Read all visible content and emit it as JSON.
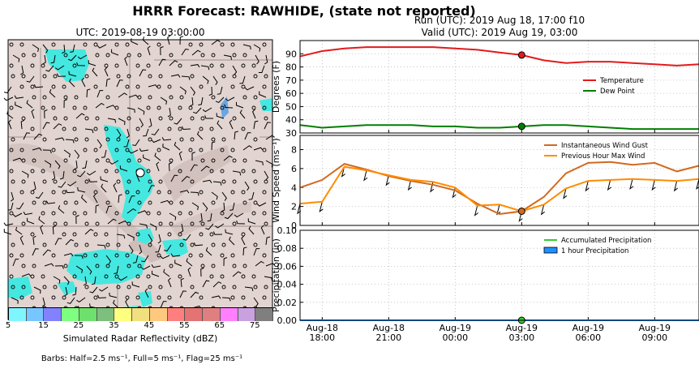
{
  "header": {
    "title": "HRRR Forecast: RAWHIDE, (state not reported)",
    "map_title": "UTC: 2019-08-19 03:00:00",
    "run_text": "Run (UTC): 2019 Aug 18, 17:00 f10",
    "valid_text": "Valid (UTC): 2019 Aug 19, 03:00"
  },
  "colorbar": {
    "label": "Simulated Radar Reflectivity (dBZ)",
    "ticks": [
      "5",
      "15",
      "25",
      "35",
      "45",
      "55",
      "65",
      "75"
    ],
    "colors": [
      "#7ff6ff",
      "#78c6ff",
      "#8282ff",
      "#7fff7f",
      "#6ee06e",
      "#7dbf7d",
      "#ffff7f",
      "#f2e07f",
      "#ffc87f",
      "#ff7f7f",
      "#e47373",
      "#e07f7f",
      "#ff7fff",
      "#c9a1e0",
      "#7f7f7f"
    ]
  },
  "barb_note": "Barbs: Half=2.5 ms⁻¹, Full=5 ms⁻¹, Flag=25 ms⁻¹",
  "colors": {
    "temperature": "#e31a1c",
    "dew_point": "#007f00",
    "gust": "#d2691e",
    "max_wind": "#ff8c00",
    "accum_precip": "#33cc33",
    "hour_precip": "#1e90ff",
    "radar_echo": "#44e8e0",
    "terrain": "#e2d4d0"
  },
  "chart_data": [
    {
      "type": "line",
      "ylabel": "Degrees (F)",
      "ylim": [
        30,
        100
      ],
      "yticks": [
        30,
        40,
        50,
        60,
        70,
        80,
        90
      ],
      "x_hours": [
        0,
        1,
        2,
        3,
        4,
        5,
        6,
        7,
        8,
        9,
        10,
        11,
        12,
        13,
        14,
        15,
        16,
        17,
        18
      ],
      "series": [
        {
          "name": "Temperature",
          "values": [
            88,
            92,
            94,
            95,
            95,
            95,
            95,
            94,
            93,
            91,
            89,
            85,
            83,
            84,
            84,
            83,
            82,
            81,
            82
          ]
        },
        {
          "name": "Dew Point",
          "values": [
            36,
            34,
            35,
            36,
            36,
            36,
            35,
            35,
            34,
            34,
            35,
            36,
            36,
            35,
            34,
            33,
            33,
            33,
            33
          ]
        }
      ],
      "marker_index": 10,
      "legend": "right",
      "grid": true
    },
    {
      "type": "line",
      "ylabel": "Wind Speed (ms⁻¹)",
      "ylim": [
        0,
        9.5
      ],
      "yticks": [
        0,
        2,
        4,
        6,
        8
      ],
      "x_hours": [
        0,
        1,
        2,
        3,
        4,
        5,
        6,
        7,
        8,
        9,
        10,
        11,
        12,
        13,
        14,
        15,
        16,
        17,
        18
      ],
      "series": [
        {
          "name": "Instantaneous Wind Gust",
          "values": [
            4.0,
            4.8,
            6.5,
            5.9,
            5.2,
            4.7,
            4.3,
            3.7,
            2.3,
            1.2,
            1.5,
            3.0,
            5.5,
            6.6,
            6.7,
            6.4,
            6.6,
            5.7,
            6.3
          ]
        },
        {
          "name": "Previous Hour Max Wind",
          "values": [
            2.3,
            2.5,
            6.2,
            5.8,
            5.3,
            4.8,
            4.6,
            4.0,
            2.1,
            2.2,
            1.5,
            2.2,
            3.9,
            4.7,
            4.8,
            4.9,
            4.8,
            4.7,
            4.9
          ]
        }
      ],
      "marker_index": 10,
      "legend": "top-right",
      "grid": true
    },
    {
      "type": "line",
      "ylabel": "Precipitation (in)",
      "ylim": [
        0,
        0.1
      ],
      "yticks": [
        "0.00",
        "0.02",
        "0.04",
        "0.06",
        "0.08",
        "0.10"
      ],
      "x_hours": [
        0,
        1,
        2,
        3,
        4,
        5,
        6,
        7,
        8,
        9,
        10,
        11,
        12,
        13,
        14,
        15,
        16,
        17,
        18
      ],
      "series": [
        {
          "name": "Accumulated Precipitation",
          "values": [
            0,
            0,
            0,
            0,
            0,
            0,
            0,
            0,
            0,
            0,
            0,
            0,
            0,
            0,
            0,
            0,
            0,
            0,
            0
          ]
        },
        {
          "name": "1 hour Precipitation",
          "values": [
            0,
            0,
            0,
            0,
            0,
            0,
            0,
            0,
            0,
            0,
            0,
            0,
            0,
            0,
            0,
            0,
            0,
            0,
            0
          ]
        }
      ],
      "marker_index": 10,
      "legend": "top-right",
      "grid": true
    }
  ],
  "x_axis": {
    "ticks": [
      {
        "hour": 1,
        "l1": "Aug-18",
        "l2": "18:00"
      },
      {
        "hour": 4,
        "l1": "Aug-18",
        "l2": "21:00"
      },
      {
        "hour": 7,
        "l1": "Aug-19",
        "l2": "00:00"
      },
      {
        "hour": 10,
        "l1": "Aug-19",
        "l2": "03:00"
      },
      {
        "hour": 13,
        "l1": "Aug-19",
        "l2": "06:00"
      },
      {
        "hour": 16,
        "l1": "Aug-19",
        "l2": "09:00"
      }
    ],
    "range": [
      0,
      18
    ]
  }
}
